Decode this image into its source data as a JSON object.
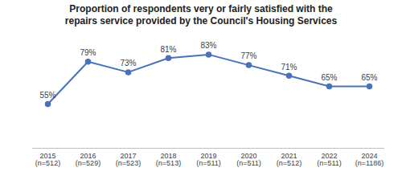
{
  "chart_data": {
    "type": "line",
    "title": "Proportion of respondents very or fairly satisfied with the repairs service provided by the Council's Housing Services",
    "categories": [
      "2015\n(n=512)",
      "2016\n(n=529)",
      "2017\n(n=523)",
      "2018\n(n=513)",
      "2019\n(n=511)",
      "2020\n(n=511)",
      "2021\n(n=512)",
      "2022\n(n=511)",
      "2024\n(n=1186)"
    ],
    "values": [
      55,
      79,
      73,
      81,
      83,
      77,
      71,
      65,
      65
    ],
    "value_labels": [
      "55%",
      "79%",
      "73%",
      "81%",
      "83%",
      "77%",
      "71%",
      "65%",
      "65%"
    ],
    "color": "#4a72b8",
    "marker": "circle",
    "ylim": [
      30,
      90
    ],
    "data_labels": true,
    "tick_labels": "x",
    "grid": false
  }
}
